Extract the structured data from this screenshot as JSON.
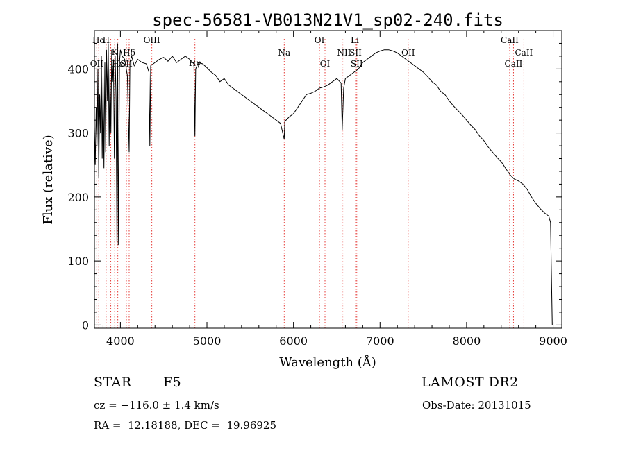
{
  "chart_data": {
    "type": "line",
    "title": "spec-56581-VB013N21V1_sp02-240.fits",
    "xlabel": "Wavelength (Å)",
    "ylabel": "Flux (relative)",
    "xlim": [
      3700,
      9100
    ],
    "ylim": [
      -5,
      460
    ],
    "xticks": [
      4000,
      5000,
      6000,
      7000,
      8000,
      9000
    ],
    "yticks": [
      0,
      100,
      200,
      300,
      400
    ],
    "grid": false,
    "series": [
      {
        "name": "spectrum",
        "x": [
          3700,
          3710,
          3720,
          3730,
          3740,
          3750,
          3760,
          3770,
          3780,
          3790,
          3800,
          3810,
          3820,
          3830,
          3840,
          3850,
          3860,
          3870,
          3880,
          3890,
          3900,
          3910,
          3920,
          3930,
          3940,
          3950,
          3960,
          3968,
          3975,
          3990,
          4000,
          4020,
          4050,
          4080,
          4101,
          4110,
          4130,
          4160,
          4200,
          4250,
          4300,
          4330,
          4340,
          4350,
          4400,
          4450,
          4500,
          4550,
          4600,
          4650,
          4700,
          4750,
          4800,
          4850,
          4861,
          4870,
          4900,
          4950,
          5000,
          5050,
          5100,
          5150,
          5200,
          5250,
          5300,
          5350,
          5400,
          5450,
          5500,
          5550,
          5600,
          5650,
          5700,
          5750,
          5800,
          5850,
          5893,
          5900,
          5950,
          6000,
          6050,
          6100,
          6150,
          6200,
          6250,
          6300,
          6350,
          6400,
          6450,
          6500,
          6550,
          6563,
          6580,
          6600,
          6650,
          6700,
          6750,
          6800,
          6850,
          6900,
          6950,
          7000,
          7050,
          7100,
          7150,
          7200,
          7250,
          7300,
          7350,
          7400,
          7450,
          7500,
          7550,
          7600,
          7650,
          7700,
          7750,
          7800,
          7850,
          7900,
          7950,
          8000,
          8050,
          8100,
          8150,
          8200,
          8250,
          8300,
          8350,
          8400,
          8450,
          8500,
          8550,
          8600,
          8650,
          8700,
          8750,
          8800,
          8850,
          8900,
          8950,
          8970,
          8990
        ],
        "y": [
          310,
          250,
          340,
          280,
          400,
          230,
          360,
          300,
          420,
          260,
          390,
          245,
          410,
          270,
          430,
          350,
          440,
          280,
          400,
          300,
          430,
          380,
          415,
          260,
          420,
          350,
          130,
          440,
          125,
          410,
          430,
          420,
          415,
          390,
          270,
          410,
          420,
          405,
          415,
          410,
          408,
          395,
          280,
          405,
          410,
          415,
          418,
          412,
          420,
          410,
          415,
          420,
          415,
          408,
          295,
          400,
          410,
          408,
          402,
          395,
          390,
          380,
          385,
          375,
          370,
          365,
          360,
          355,
          350,
          345,
          340,
          335,
          330,
          325,
          320,
          315,
          290,
          318,
          325,
          330,
          340,
          350,
          360,
          362,
          365,
          370,
          372,
          375,
          380,
          385,
          378,
          305,
          370,
          385,
          390,
          395,
          400,
          410,
          415,
          420,
          425,
          428,
          430,
          430,
          428,
          425,
          420,
          415,
          410,
          405,
          400,
          395,
          388,
          380,
          375,
          365,
          360,
          350,
          342,
          335,
          328,
          320,
          312,
          305,
          295,
          288,
          278,
          270,
          262,
          255,
          245,
          235,
          228,
          225,
          220,
          212,
          200,
          190,
          182,
          175,
          170,
          160,
          0
        ]
      }
    ],
    "line_markers": [
      {
        "label": "Hα",
        "x": 3750,
        "row": 1
      },
      {
        "label": "H",
        "x": 3835,
        "row": 1
      },
      {
        "label": "K",
        "x": 3934,
        "row": 2
      },
      {
        "label": "Hδ",
        "x": 4101,
        "row": 3
      },
      {
        "label": "OIII",
        "x": 4363,
        "row": 1
      },
      {
        "label": "OII",
        "x": 3727,
        "row": 4
      },
      {
        "label": "Hε",
        "x": 3970,
        "row": 4
      },
      {
        "label": "SII",
        "x": 4069,
        "row": 4
      },
      {
        "label": "Hγ",
        "x": 4861,
        "row": 5
      },
      {
        "label": "Na",
        "x": 5893,
        "row": 3
      },
      {
        "label": "OI",
        "x": 6300,
        "row": 1
      },
      {
        "label": "OI",
        "x": 6364,
        "row": 4
      },
      {
        "label": "Li",
        "x": 6708,
        "row": 1
      },
      {
        "label": "NII",
        "x": 6584,
        "row": 3
      },
      {
        "label": "SII",
        "x": 6717,
        "row": 3
      },
      {
        "label": "SII",
        "x": 6731,
        "row": 4
      },
      {
        "label": "OII",
        "x": 7325,
        "row": 3
      },
      {
        "label": "CaII",
        "x": 8498,
        "row": 1
      },
      {
        "label": "CaII",
        "x": 8542,
        "row": 4
      },
      {
        "label": "CaII",
        "x": 8662,
        "row": 3
      }
    ],
    "marker_lines_x": [
      3727,
      3750,
      3835,
      3889,
      3934,
      3970,
      4069,
      4101,
      4363,
      4861,
      5893,
      6300,
      6364,
      6563,
      6584,
      6717,
      6731,
      7325,
      8498,
      8542,
      8662
    ]
  },
  "info": {
    "object_type": "STAR",
    "subclass": "F5",
    "survey": "LAMOST DR2",
    "cz": "cz = −116.0 ± 1.4 km/s",
    "obs_date": "Obs-Date: 20131015",
    "coords": "RA =  12.18188, DEC =  19.96925"
  }
}
